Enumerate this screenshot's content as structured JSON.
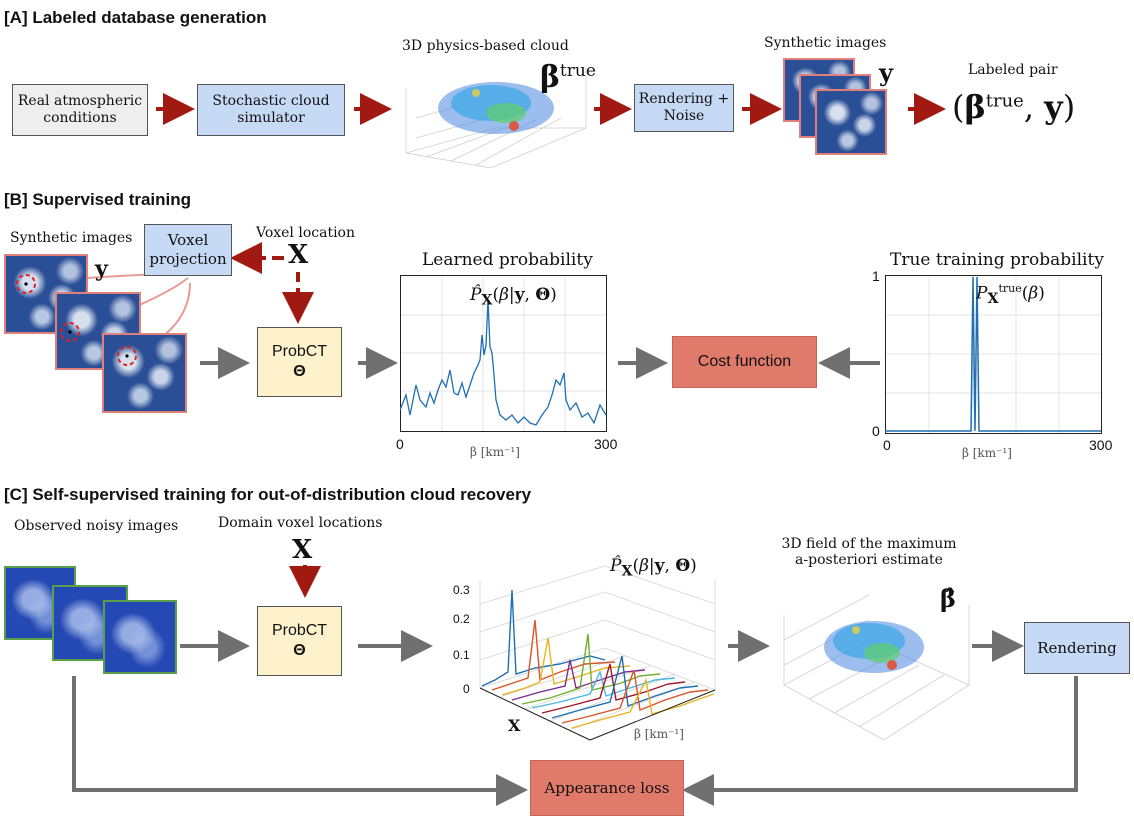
{
  "sections": {
    "a": "[A] Labeled database generation",
    "b": "[B] Supervised training",
    "c": "[C] Self-supervised training for out-of-distribution cloud recovery"
  },
  "panel_a": {
    "box_conditions": "Real atmospheric conditions",
    "box_simulator": "Stochastic cloud simulator",
    "cloud_label": "3D physics-based cloud",
    "beta_true": "βtrue",
    "box_render": "Rendering + Noise",
    "synthetic_label": "Synthetic images",
    "y": "y",
    "pair_label": "Labeled pair",
    "pair_formula": "(βtrue, y)"
  },
  "panel_b": {
    "synthetic_label": "Synthetic images",
    "y": "y",
    "voxel_proj": "Voxel projection",
    "voxel_loc": "Voxel location",
    "X": "X",
    "probct": "ProbCT",
    "theta": "Θ",
    "learned_title": "Learned probability",
    "learned_formula": "P̂X(β|y, Θ)",
    "true_title": "True training probability",
    "true_formula": "PXtrue(β)",
    "cost": "Cost function",
    "xaxis": "β [km⁻¹]",
    "x0": "0",
    "x300": "300",
    "y1": "1",
    "y0": "0"
  },
  "panel_c": {
    "observed_label": "Observed noisy images",
    "domain_label": "Domain voxel locations",
    "X": "X",
    "probct": "ProbCT",
    "theta": "Θ",
    "prob_formula": "P̂X(β|y, Θ)",
    "ticks_z": [
      "0.3",
      "0.2",
      "0.1",
      "0"
    ],
    "axis_x": "X",
    "axis_beta": "β [km⁻¹]",
    "map_label_1": "3D field of the maximum",
    "map_label_2": "a-posteriori estimate",
    "beta_hat": "β̂",
    "box_render": "Rendering",
    "loss": "Appearance loss"
  },
  "colors": {
    "arrow_red": "#a01a12",
    "arrow_gray": "#707070",
    "box_blue": "#c6d9f5",
    "box_yellow": "#fdf2cc",
    "box_salmon": "#e07a6a",
    "plot_line": "#1f6fb4"
  }
}
